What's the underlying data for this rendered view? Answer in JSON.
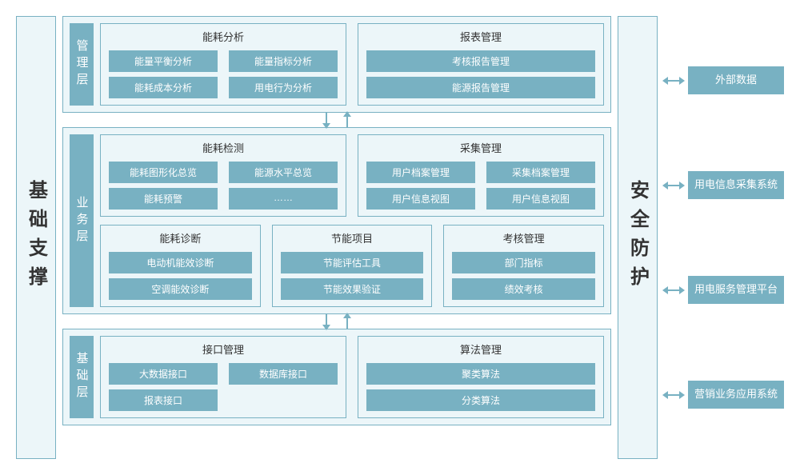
{
  "colors": {
    "primary": "#78b1c2",
    "background": "#ecf6f9",
    "border": "#78b1c2",
    "text_dark": "#333333",
    "text_light": "#ffffff"
  },
  "typography": {
    "pillar_fontsize": 24,
    "layer_label_fontsize": 15,
    "group_title_fontsize": 13,
    "button_fontsize": 12,
    "ext_fontsize": 13
  },
  "pillars": {
    "left": "基础支撑",
    "right": "安全防护"
  },
  "layers": [
    {
      "label": "管理层",
      "rows": [
        [
          {
            "title": "能耗分析",
            "cols": 2,
            "items": [
              "能量平衡分析",
              "能量指标分析",
              "能耗成本分析",
              "用电行为分析"
            ]
          },
          {
            "title": "报表管理",
            "cols": 1,
            "items": [
              "考核报告管理",
              "能源报告管理"
            ]
          }
        ]
      ]
    },
    {
      "label": "业务层",
      "rows": [
        [
          {
            "title": "能耗检测",
            "cols": 2,
            "items": [
              "能耗图形化总览",
              "能源水平总览",
              "能耗预警",
              "……"
            ]
          },
          {
            "title": "采集管理",
            "cols": 2,
            "items": [
              "用户档案管理",
              "采集档案管理",
              "用户信息视图",
              "用户信息视图"
            ]
          }
        ],
        [
          {
            "title": "能耗诊断",
            "cols": 1,
            "items": [
              "电动机能效诊断",
              "空调能效诊断"
            ]
          },
          {
            "title": "节能项目",
            "cols": 1,
            "items": [
              "节能评估工具",
              "节能效果验证"
            ]
          },
          {
            "title": "考核管理",
            "cols": 1,
            "items": [
              "部门指标",
              "绩效考核"
            ]
          }
        ]
      ]
    },
    {
      "label": "基础层",
      "rows": [
        [
          {
            "title": "接口管理",
            "cols": 2,
            "items": [
              "大数据接口",
              "数据库接口",
              "报表接口"
            ]
          },
          {
            "title": "算法管理",
            "cols": 1,
            "items": [
              "聚类算法",
              "分类算法"
            ]
          }
        ]
      ]
    }
  ],
  "external": [
    "外部数据",
    "用电信息采集系统",
    "用电服务管理平台",
    "营销业务应用系统"
  ]
}
